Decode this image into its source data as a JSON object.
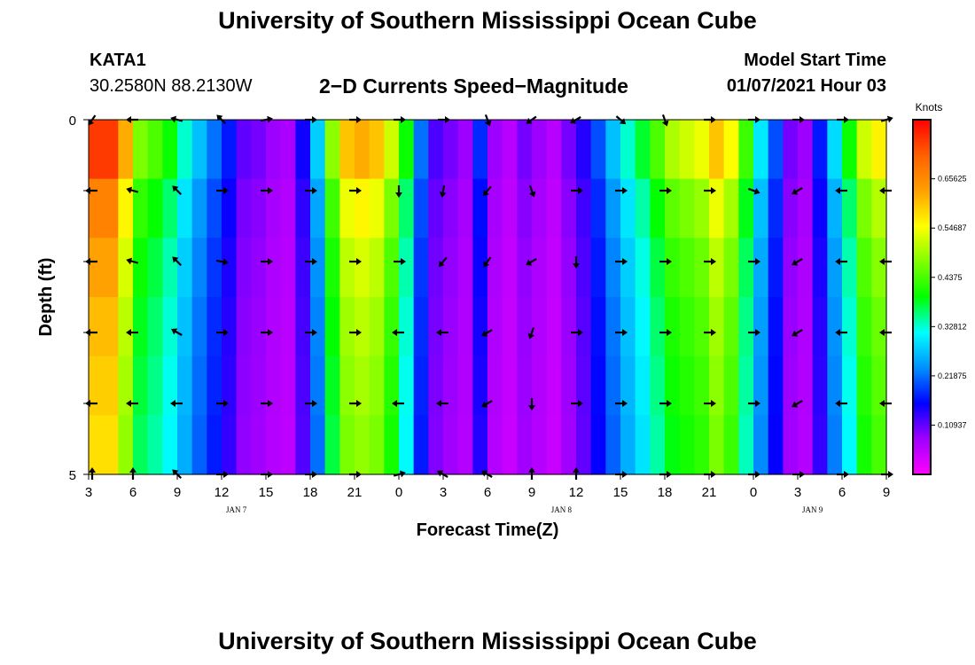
{
  "header": {
    "title": "University of Southern Mississippi Ocean Cube",
    "station_id": "KATA1",
    "station_coords": "30.2580N 88.2130W",
    "subtitle": "2−D Currents Speed−Magnitude",
    "model_start_label": "Model Start Time",
    "model_start_value": "01/07/2021 Hour 03"
  },
  "footer": {
    "title": "University of Southern Mississippi Ocean Cube"
  },
  "colors": {
    "stops": [
      "#ff00ff",
      "#a000ff",
      "#0000ff",
      "#0090ff",
      "#00ffff",
      "#00ff00",
      "#80ff00",
      "#ffff00",
      "#ffa000",
      "#ff6000",
      "#ff0000"
    ]
  },
  "chart_data": {
    "type": "heatmap",
    "title": "2−D Currents Speed−Magnitude",
    "xlabel": "Forecast Time(Z)",
    "ylabel": "Depth (ft)",
    "xlim": [
      0,
      54
    ],
    "ylim": [
      0,
      5
    ],
    "x_ticks": [
      "3",
      "6",
      "9",
      "12",
      "15",
      "18",
      "21",
      "0",
      "3",
      "6",
      "9",
      "12",
      "15",
      "18",
      "21",
      "0",
      "3",
      "6",
      "9"
    ],
    "date_labels": [
      {
        "label": "JAN 7",
        "hour": 10
      },
      {
        "label": "JAN 8",
        "hour": 32
      },
      {
        "label": "JAN 9",
        "hour": 49
      }
    ],
    "y_ticks": [
      "0",
      "5"
    ],
    "colorbar": {
      "unit": "Knots",
      "range": [
        0,
        0.7875
      ],
      "ticks": [
        {
          "value": 0.10937,
          "label": "0.10937"
        },
        {
          "value": 0.21875,
          "label": "0.21875"
        },
        {
          "value": 0.32812,
          "label": "0.32812"
        },
        {
          "value": 0.4375,
          "label": "0.4375"
        },
        {
          "value": 0.54687,
          "label": "0.54687"
        },
        {
          "value": 0.65625,
          "label": "0.65625"
        }
      ]
    },
    "layers": [
      0,
      1,
      2,
      3,
      4,
      5
    ],
    "hours": [
      0,
      1,
      2,
      3,
      4,
      5,
      6,
      7,
      8,
      9,
      10,
      11,
      12,
      13,
      14,
      15,
      16,
      17,
      18,
      19,
      20,
      21,
      22,
      23,
      24,
      25,
      26,
      27,
      28,
      29,
      30,
      31,
      32,
      33,
      34,
      35,
      36,
      37,
      38,
      39,
      40,
      41,
      42,
      43,
      44,
      45,
      46,
      47,
      48,
      49,
      50,
      51,
      52,
      53,
      54
    ],
    "speed_profile": [
      0.74,
      0.74,
      0.62,
      0.47,
      0.44,
      0.4,
      0.33,
      0.27,
      0.22,
      0.17,
      0.11,
      0.1,
      0.08,
      0.07,
      0.15,
      0.28,
      0.48,
      0.6,
      0.62,
      0.6,
      0.52,
      0.4,
      0.22,
      0.12,
      0.1,
      0.08,
      0.18,
      0.08,
      0.06,
      0.1,
      0.08,
      0.06,
      0.1,
      0.14,
      0.2,
      0.27,
      0.33,
      0.38,
      0.44,
      0.5,
      0.52,
      0.54,
      0.6,
      0.55,
      0.43,
      0.3,
      0.2,
      0.1,
      0.08,
      0.17,
      0.29,
      0.4,
      0.52,
      0.56,
      0.56
    ],
    "depth_factor": [
      1.0,
      0.9,
      0.85,
      0.82,
      0.8,
      0.78
    ],
    "vector_hours": [
      0,
      3,
      6,
      9,
      12,
      15,
      18,
      21,
      24,
      27,
      30,
      33,
      36,
      39,
      42,
      45,
      48,
      51,
      54
    ],
    "vector_rows": [
      0,
      1,
      2,
      3,
      4,
      5
    ],
    "vector_directions": [
      [
        215,
        270,
        285,
        315,
        80,
        90,
        90,
        90,
        90,
        160,
        235,
        240,
        130,
        160,
        90,
        90,
        90,
        90,
        75
      ],
      [
        270,
        285,
        315,
        90,
        90,
        90,
        90,
        180,
        190,
        220,
        160,
        90,
        90,
        90,
        90,
        110,
        240,
        270,
        270
      ],
      [
        270,
        285,
        315,
        100,
        90,
        90,
        90,
        90,
        220,
        215,
        240,
        180,
        90,
        90,
        90,
        90,
        240,
        270,
        270
      ],
      [
        270,
        270,
        300,
        90,
        90,
        90,
        90,
        270,
        270,
        240,
        200,
        90,
        90,
        90,
        90,
        90,
        240,
        270,
        270
      ],
      [
        270,
        270,
        270,
        90,
        90,
        90,
        90,
        270,
        270,
        240,
        180,
        90,
        90,
        90,
        90,
        90,
        240,
        270,
        270
      ],
      [
        0,
        0,
        315,
        90,
        90,
        90,
        90,
        75,
        300,
        300,
        0,
        0,
        90,
        90,
        90,
        90,
        90,
        90,
        90
      ]
    ]
  }
}
